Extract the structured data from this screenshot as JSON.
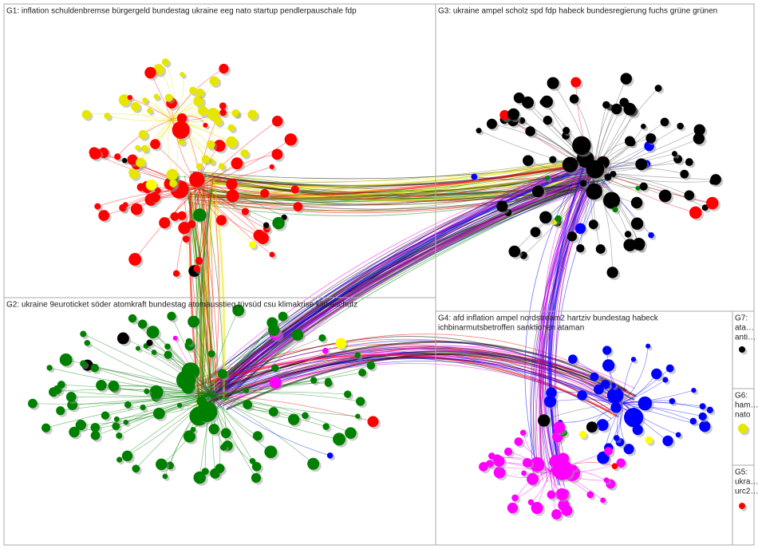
{
  "groups": [
    {
      "label": "G1: inflation schuldenbremse bürgergeld bundestag ukraine eeg nato startup pendlerpauschale fdp"
    },
    {
      "label": "G3: ukraine ampel scholz spd fdp habeck bundesregierung fuchs grüne grünen"
    },
    {
      "label": "G2: ukraine 9euroticket söder atomkraft bundestag atomausstieg tüvsüd csu klimakrise klimaschutz"
    },
    {
      "label": "G4: afd inflation ampel nordstream2 hartziv bundestag habeck",
      "terms": [
        "ichbinarmutsbetroffen sanktionen ataman"
      ]
    },
    {
      "label": "G7:",
      "terms": [
        "ata…",
        "anti…"
      ]
    },
    {
      "label": "G6:",
      "terms": [
        "ham…",
        "nato"
      ]
    },
    {
      "label": "G5:",
      "terms": [
        "ukra…",
        "urc2…"
      ]
    }
  ]
}
